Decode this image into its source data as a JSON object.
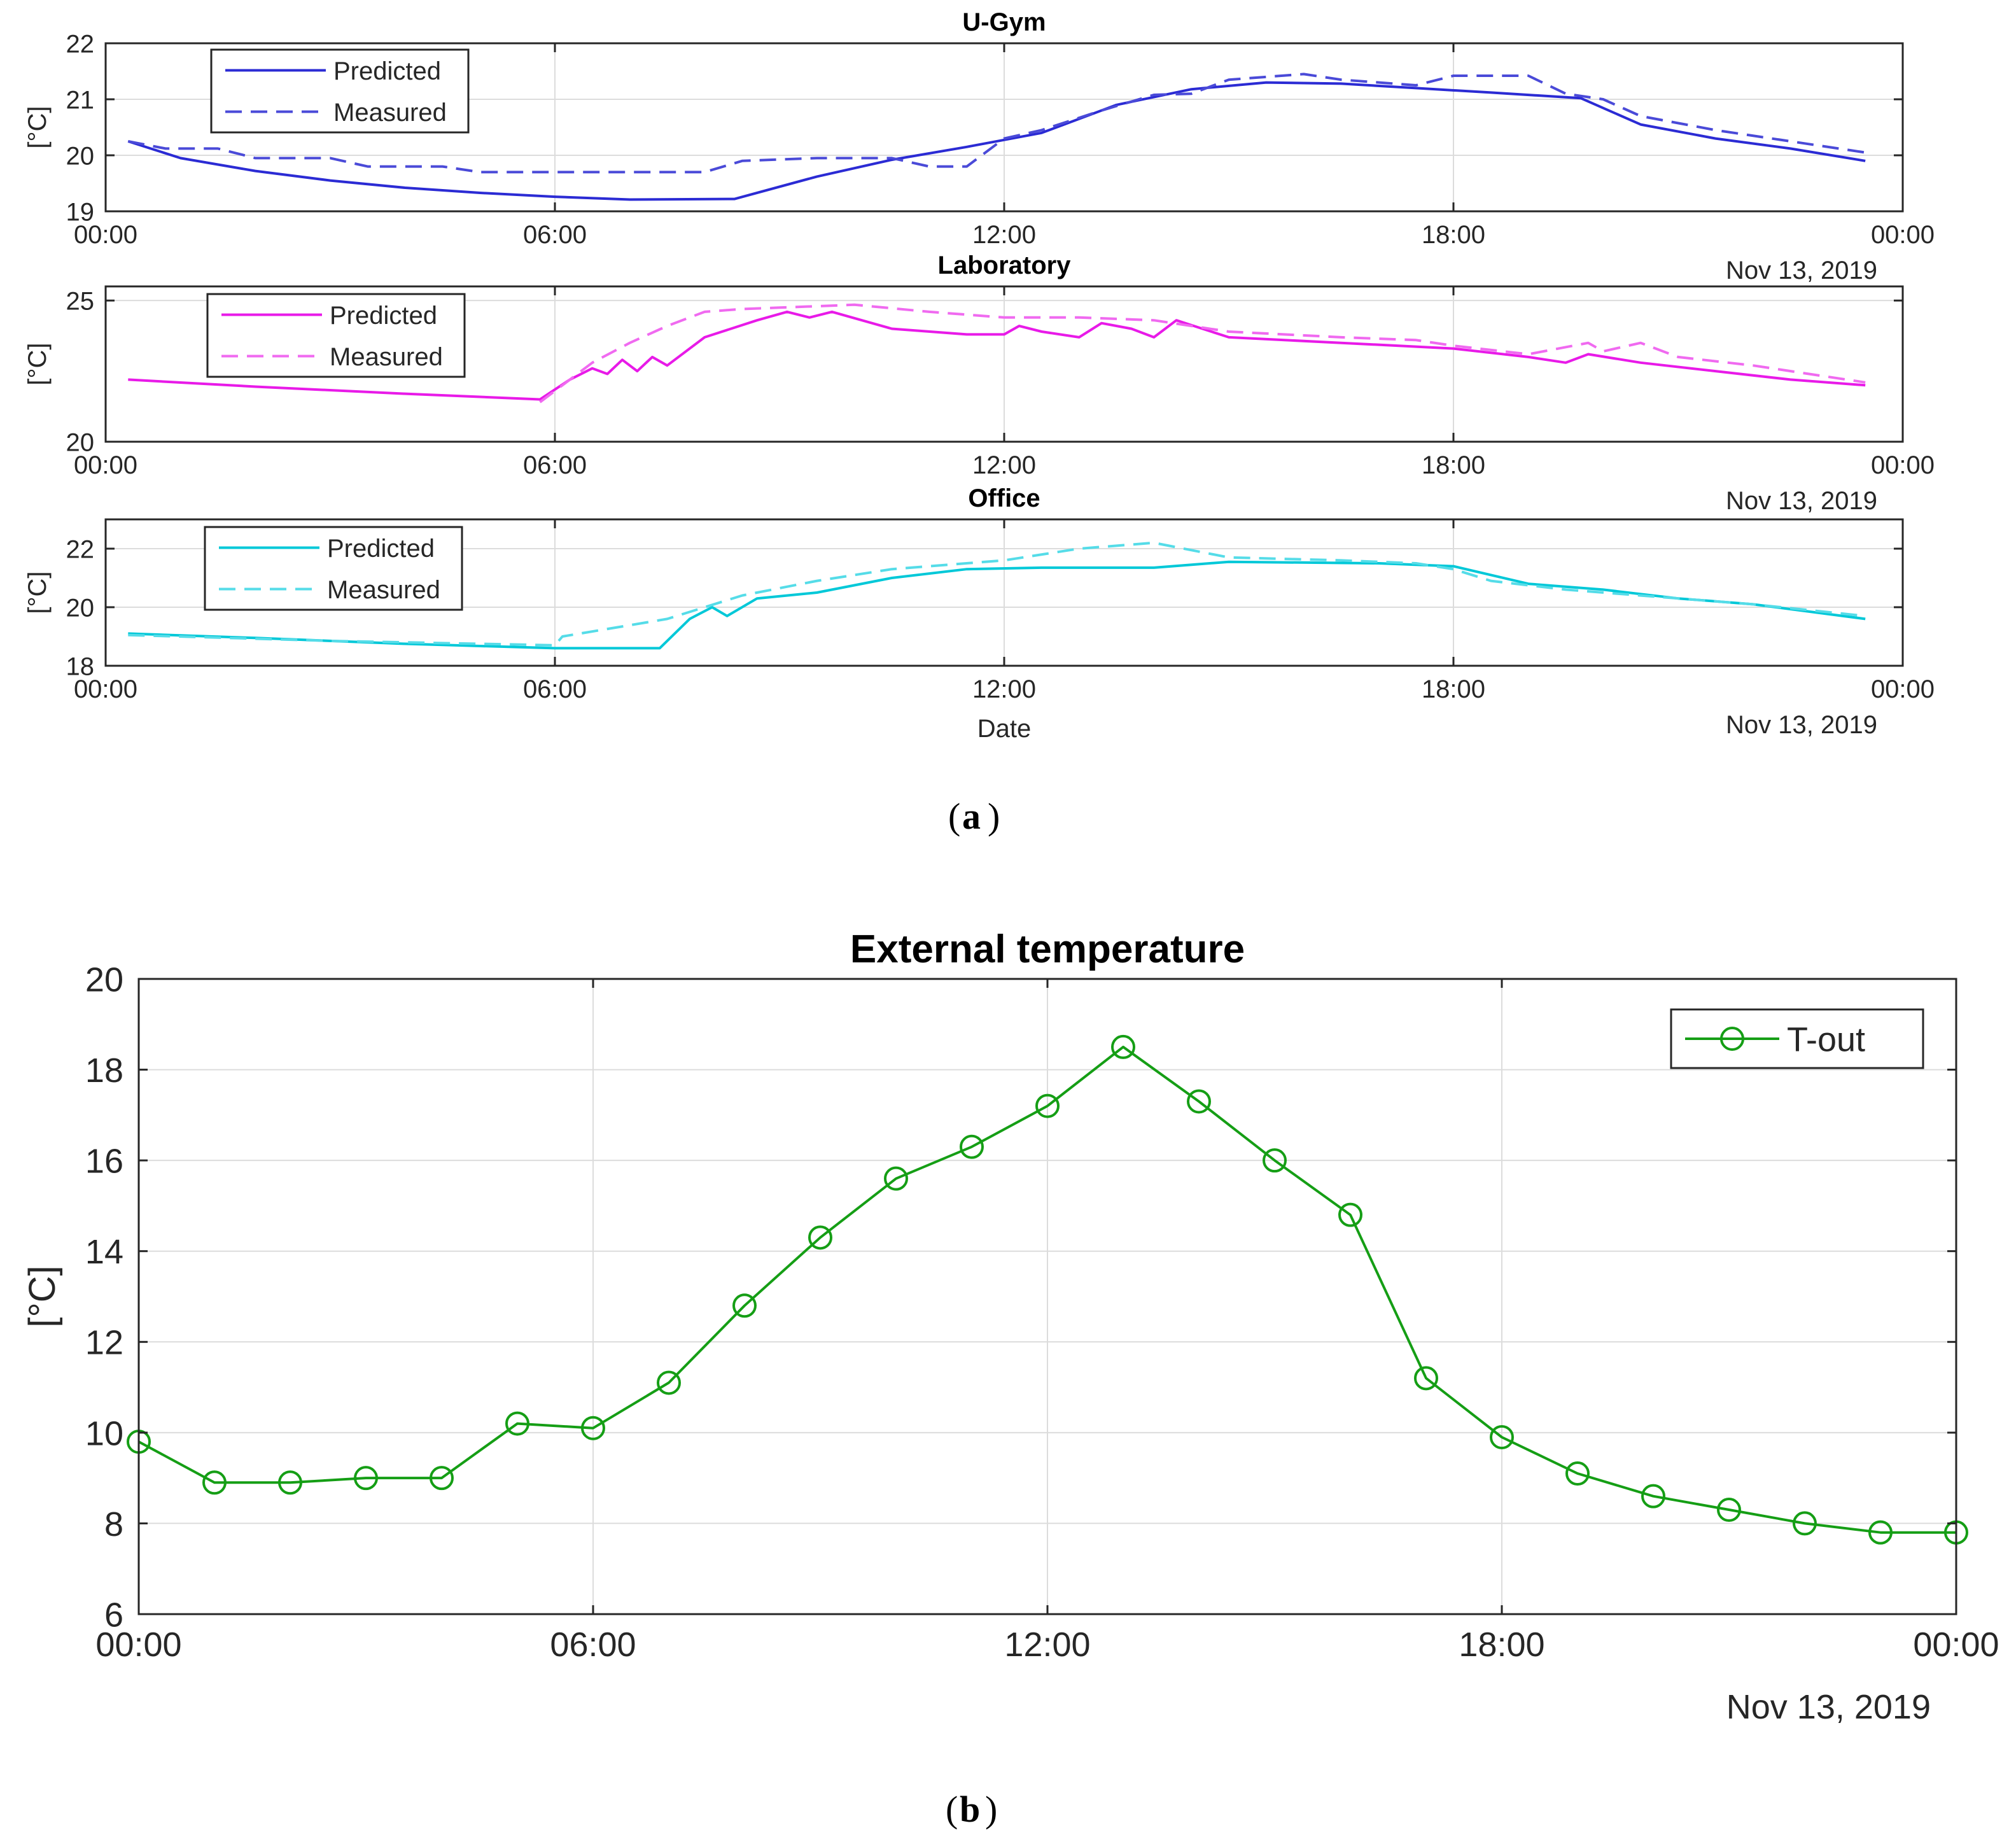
{
  "captions": {
    "a": "a",
    "b": "b"
  },
  "chart_data": [
    {
      "type": "line",
      "title": "U-Gym",
      "ylabel": "[°C]",
      "xlabel": "",
      "x_tick_labels": [
        "00:00",
        "06:00",
        "12:00",
        "18:00",
        "00:00"
      ],
      "date_label": "Nov 13, 2019",
      "ylim": [
        19,
        22
      ],
      "y_ticks": [
        19,
        20,
        21,
        22
      ],
      "x_range_hours": [
        0,
        24
      ],
      "grid": true,
      "legend_position": "top-left",
      "series": [
        {
          "name": "Predicted",
          "style": "solid",
          "color": "#2b2bd4",
          "points": [
            [
              0.3,
              20.25
            ],
            [
              1.0,
              19.95
            ],
            [
              2.0,
              19.72
            ],
            [
              3.0,
              19.55
            ],
            [
              4.0,
              19.42
            ],
            [
              5.0,
              19.33
            ],
            [
              6.0,
              19.26
            ],
            [
              7.0,
              19.21
            ],
            [
              8.4,
              19.22
            ],
            [
              9.5,
              19.62
            ],
            [
              10.5,
              19.92
            ],
            [
              11.5,
              20.15
            ],
            [
              12.5,
              20.4
            ],
            [
              13.5,
              20.9
            ],
            [
              14.5,
              21.18
            ],
            [
              15.5,
              21.3
            ],
            [
              16.5,
              21.28
            ],
            [
              17.5,
              21.2
            ],
            [
              18.5,
              21.12
            ],
            [
              19.7,
              21.02
            ],
            [
              20.5,
              20.55
            ],
            [
              21.5,
              20.3
            ],
            [
              22.5,
              20.12
            ],
            [
              23.5,
              19.9
            ]
          ]
        },
        {
          "name": "Measured",
          "style": "dashed",
          "color": "#4a4ad8",
          "points": [
            [
              0.3,
              20.25
            ],
            [
              0.8,
              20.12
            ],
            [
              1.5,
              20.12
            ],
            [
              2.0,
              19.95
            ],
            [
              3.0,
              19.95
            ],
            [
              3.5,
              19.8
            ],
            [
              4.5,
              19.8
            ],
            [
              5.0,
              19.7
            ],
            [
              8.0,
              19.7
            ],
            [
              8.5,
              19.9
            ],
            [
              9.5,
              19.95
            ],
            [
              10.5,
              19.95
            ],
            [
              11.0,
              19.8
            ],
            [
              11.5,
              19.8
            ],
            [
              12.0,
              20.3
            ],
            [
              12.5,
              20.45
            ],
            [
              13.3,
              20.8
            ],
            [
              14.0,
              21.08
            ],
            [
              14.5,
              21.1
            ],
            [
              15.0,
              21.35
            ],
            [
              16.0,
              21.45
            ],
            [
              16.5,
              21.35
            ],
            [
              17.5,
              21.25
            ],
            [
              18.0,
              21.42
            ],
            [
              19.0,
              21.42
            ],
            [
              19.5,
              21.1
            ],
            [
              20.0,
              21.0
            ],
            [
              20.5,
              20.7
            ],
            [
              21.5,
              20.45
            ],
            [
              22.5,
              20.25
            ],
            [
              23.5,
              20.05
            ]
          ]
        }
      ]
    },
    {
      "type": "line",
      "title": "Laboratory",
      "ylabel": "[°C]",
      "xlabel": "",
      "x_tick_labels": [
        "00:00",
        "06:00",
        "12:00",
        "18:00",
        "00:00"
      ],
      "date_label": "Nov 13, 2019",
      "ylim": [
        20,
        25.5
      ],
      "y_ticks": [
        20,
        25
      ],
      "x_range_hours": [
        0,
        24
      ],
      "grid": true,
      "legend_position": "top-left",
      "series": [
        {
          "name": "Predicted",
          "style": "solid",
          "color": "#e81ae8",
          "points": [
            [
              0.3,
              22.2
            ],
            [
              2.0,
              21.95
            ],
            [
              4.0,
              21.7
            ],
            [
              5.8,
              21.5
            ],
            [
              6.2,
              22.2
            ],
            [
              6.5,
              22.6
            ],
            [
              6.7,
              22.4
            ],
            [
              6.9,
              22.9
            ],
            [
              7.1,
              22.5
            ],
            [
              7.3,
              23.0
            ],
            [
              7.5,
              22.7
            ],
            [
              8.0,
              23.7
            ],
            [
              8.7,
              24.3
            ],
            [
              9.1,
              24.6
            ],
            [
              9.4,
              24.4
            ],
            [
              9.7,
              24.6
            ],
            [
              10.5,
              24.0
            ],
            [
              11.5,
              23.8
            ],
            [
              12.0,
              23.8
            ],
            [
              12.2,
              24.1
            ],
            [
              12.5,
              23.9
            ],
            [
              13.0,
              23.7
            ],
            [
              13.3,
              24.2
            ],
            [
              13.7,
              24.0
            ],
            [
              14.0,
              23.7
            ],
            [
              14.3,
              24.3
            ],
            [
              15.0,
              23.7
            ],
            [
              16.5,
              23.5
            ],
            [
              18.0,
              23.3
            ],
            [
              19.0,
              23.0
            ],
            [
              19.5,
              22.8
            ],
            [
              19.8,
              23.1
            ],
            [
              20.5,
              22.8
            ],
            [
              21.5,
              22.5
            ],
            [
              22.5,
              22.2
            ],
            [
              23.5,
              22.0
            ]
          ]
        },
        {
          "name": "Measured",
          "style": "dashed",
          "color": "#f06af0",
          "points": [
            [
              5.8,
              21.4
            ],
            [
              6.5,
              22.8
            ],
            [
              7.0,
              23.5
            ],
            [
              7.5,
              24.1
            ],
            [
              8.0,
              24.6
            ],
            [
              8.5,
              24.7
            ],
            [
              9.0,
              24.75
            ],
            [
              10.0,
              24.85
            ],
            [
              11.0,
              24.6
            ],
            [
              12.0,
              24.4
            ],
            [
              13.0,
              24.4
            ],
            [
              14.0,
              24.3
            ],
            [
              15.0,
              23.9
            ],
            [
              16.5,
              23.7
            ],
            [
              17.5,
              23.6
            ],
            [
              18.0,
              23.4
            ],
            [
              19.0,
              23.1
            ],
            [
              19.8,
              23.5
            ],
            [
              20.0,
              23.2
            ],
            [
              20.5,
              23.5
            ],
            [
              21.0,
              23.0
            ],
            [
              22.0,
              22.7
            ],
            [
              23.5,
              22.1
            ]
          ]
        }
      ]
    },
    {
      "type": "line",
      "title": "Office",
      "ylabel": "[°C]",
      "xlabel": "Date",
      "x_tick_labels": [
        "00:00",
        "06:00",
        "12:00",
        "18:00",
        "00:00"
      ],
      "date_label": "Nov 13, 2019",
      "ylim": [
        18,
        23
      ],
      "y_ticks": [
        18,
        20,
        22
      ],
      "x_range_hours": [
        0,
        24
      ],
      "grid": true,
      "legend_position": "top-left",
      "series": [
        {
          "name": "Predicted",
          "style": "solid",
          "color": "#00c8d8",
          "points": [
            [
              0.3,
              19.1
            ],
            [
              2.0,
              18.95
            ],
            [
              4.0,
              18.75
            ],
            [
              6.0,
              18.6
            ],
            [
              7.4,
              18.6
            ],
            [
              7.8,
              19.6
            ],
            [
              8.1,
              20.0
            ],
            [
              8.3,
              19.7
            ],
            [
              8.7,
              20.3
            ],
            [
              9.5,
              20.5
            ],
            [
              10.5,
              21.0
            ],
            [
              11.5,
              21.3
            ],
            [
              12.5,
              21.35
            ],
            [
              14.0,
              21.35
            ],
            [
              15.0,
              21.55
            ],
            [
              17.0,
              21.5
            ],
            [
              18.0,
              21.4
            ],
            [
              19.0,
              20.8
            ],
            [
              20.0,
              20.6
            ],
            [
              21.0,
              20.3
            ],
            [
              22.0,
              20.1
            ],
            [
              23.5,
              19.6
            ]
          ]
        },
        {
          "name": "Measured",
          "style": "dashed",
          "color": "#55dce8",
          "points": [
            [
              0.3,
              19.05
            ],
            [
              3.0,
              18.85
            ],
            [
              6.0,
              18.7
            ],
            [
              6.1,
              19.0
            ],
            [
              7.5,
              19.6
            ],
            [
              8.5,
              20.4
            ],
            [
              9.5,
              20.9
            ],
            [
              10.5,
              21.3
            ],
            [
              12.0,
              21.6
            ],
            [
              13.0,
              22.0
            ],
            [
              14.0,
              22.2
            ],
            [
              15.0,
              21.7
            ],
            [
              16.5,
              21.6
            ],
            [
              17.5,
              21.5
            ],
            [
              18.0,
              21.3
            ],
            [
              18.5,
              20.9
            ],
            [
              19.5,
              20.6
            ],
            [
              20.5,
              20.4
            ],
            [
              22.0,
              20.1
            ],
            [
              23.5,
              19.7
            ]
          ]
        }
      ]
    },
    {
      "type": "line",
      "title": "External temperature",
      "ylabel": "[°C]",
      "xlabel": "",
      "x_tick_labels": [
        "00:00",
        "06:00",
        "12:00",
        "18:00",
        "00:00"
      ],
      "date_label": "Nov 13, 2019",
      "ylim": [
        6,
        20
      ],
      "y_ticks": [
        6,
        8,
        10,
        12,
        14,
        16,
        18,
        20
      ],
      "x_range_hours": [
        0,
        24
      ],
      "grid": true,
      "legend_position": "top-right",
      "series": [
        {
          "name": "T-out",
          "style": "solid-circle-markers",
          "color": "#159e15",
          "points": [
            [
              0,
              9.8
            ],
            [
              1,
              8.9
            ],
            [
              2,
              8.9
            ],
            [
              3,
              9.0
            ],
            [
              4,
              9.0
            ],
            [
              5,
              10.2
            ],
            [
              6,
              10.1
            ],
            [
              7,
              11.1
            ],
            [
              8,
              12.8
            ],
            [
              9,
              14.3
            ],
            [
              10,
              15.6
            ],
            [
              11,
              16.3
            ],
            [
              12,
              17.2
            ],
            [
              13,
              18.5
            ],
            [
              14,
              17.3
            ],
            [
              15,
              16.0
            ],
            [
              16,
              14.8
            ],
            [
              17,
              11.2
            ],
            [
              18,
              9.9
            ],
            [
              19,
              9.1
            ],
            [
              20,
              8.6
            ],
            [
              21,
              8.3
            ],
            [
              22,
              8.0
            ],
            [
              23,
              7.8
            ],
            [
              24,
              7.8
            ]
          ]
        }
      ]
    }
  ]
}
